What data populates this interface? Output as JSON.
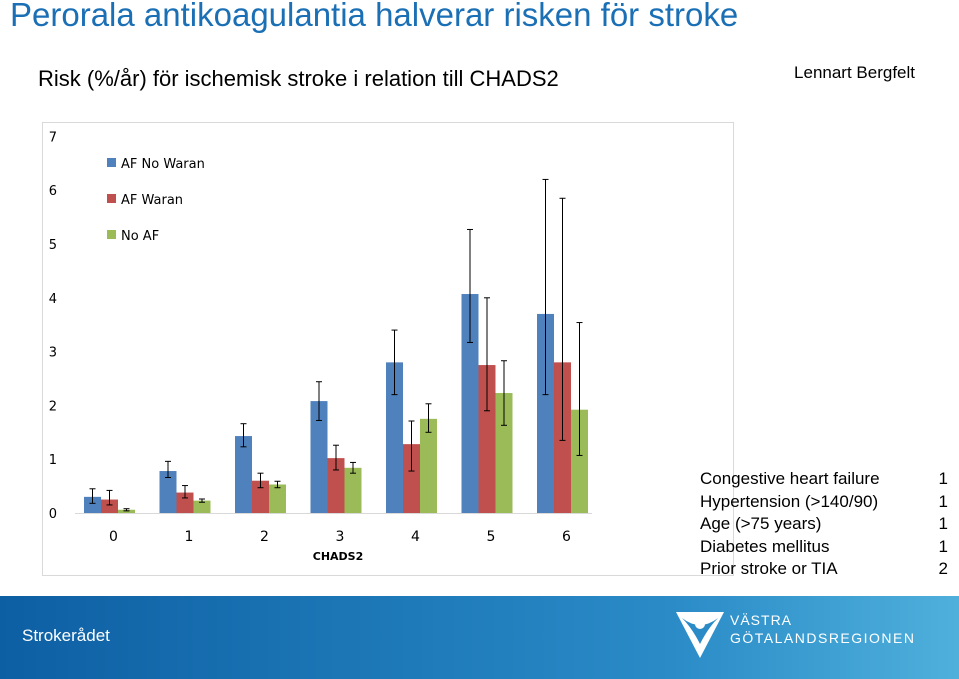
{
  "header": {
    "title": "Perorala antikoagulantia halverar risken för stroke",
    "subtitle": "Risk (%/år) för ischemisk stroke i relation till CHADS2",
    "author": "Lennart Bergfelt"
  },
  "chart_data": {
    "type": "bar",
    "xlabel": "CHADS2",
    "ylabel": "",
    "ylim": [
      0,
      7
    ],
    "yticks": [
      0,
      1,
      2,
      3,
      4,
      5,
      6,
      7
    ],
    "categories": [
      "0",
      "1",
      "2",
      "3",
      "4",
      "5",
      "6"
    ],
    "legend_position": "top-left",
    "grid": false,
    "series": [
      {
        "name": "AF No Waran",
        "color": "#4f81bd",
        "values": [
          0.3,
          0.78,
          1.43,
          2.08,
          2.8,
          4.07,
          3.7
        ],
        "err_low": [
          0.12,
          0.12,
          0.2,
          0.36,
          0.6,
          0.9,
          1.5
        ],
        "err_high": [
          0.15,
          0.18,
          0.23,
          0.36,
          0.6,
          1.2,
          2.5
        ]
      },
      {
        "name": "AF Waran",
        "color": "#c0504d",
        "values": [
          0.25,
          0.38,
          0.6,
          1.02,
          1.28,
          2.75,
          2.8
        ],
        "err_low": [
          0.1,
          0.1,
          0.13,
          0.22,
          0.5,
          0.85,
          1.45
        ],
        "err_high": [
          0.17,
          0.13,
          0.14,
          0.24,
          0.43,
          1.25,
          3.05
        ]
      },
      {
        "name": "No AF",
        "color": "#9bbb59",
        "values": [
          0.06,
          0.23,
          0.53,
          0.84,
          1.75,
          2.23,
          1.92
        ],
        "err_low": [
          0.02,
          0.03,
          0.06,
          0.1,
          0.25,
          0.6,
          0.85
        ],
        "err_high": [
          0.02,
          0.03,
          0.06,
          0.1,
          0.28,
          0.6,
          1.62
        ]
      }
    ]
  },
  "score_table": [
    {
      "label": "Congestive heart failure",
      "points": "1"
    },
    {
      "label": "Hypertension (>140/90)",
      "points": "1"
    },
    {
      "label": "Age (>75 years)",
      "points": "1"
    },
    {
      "label": "Diabetes mellitus",
      "points": "1"
    },
    {
      "label": "Prior stroke or TIA",
      "points": "2"
    }
  ],
  "footer": {
    "organization": "Strokerådet",
    "logo_line1": "VÄSTRA",
    "logo_line2": "GÖTALANDSREGIONEN"
  }
}
